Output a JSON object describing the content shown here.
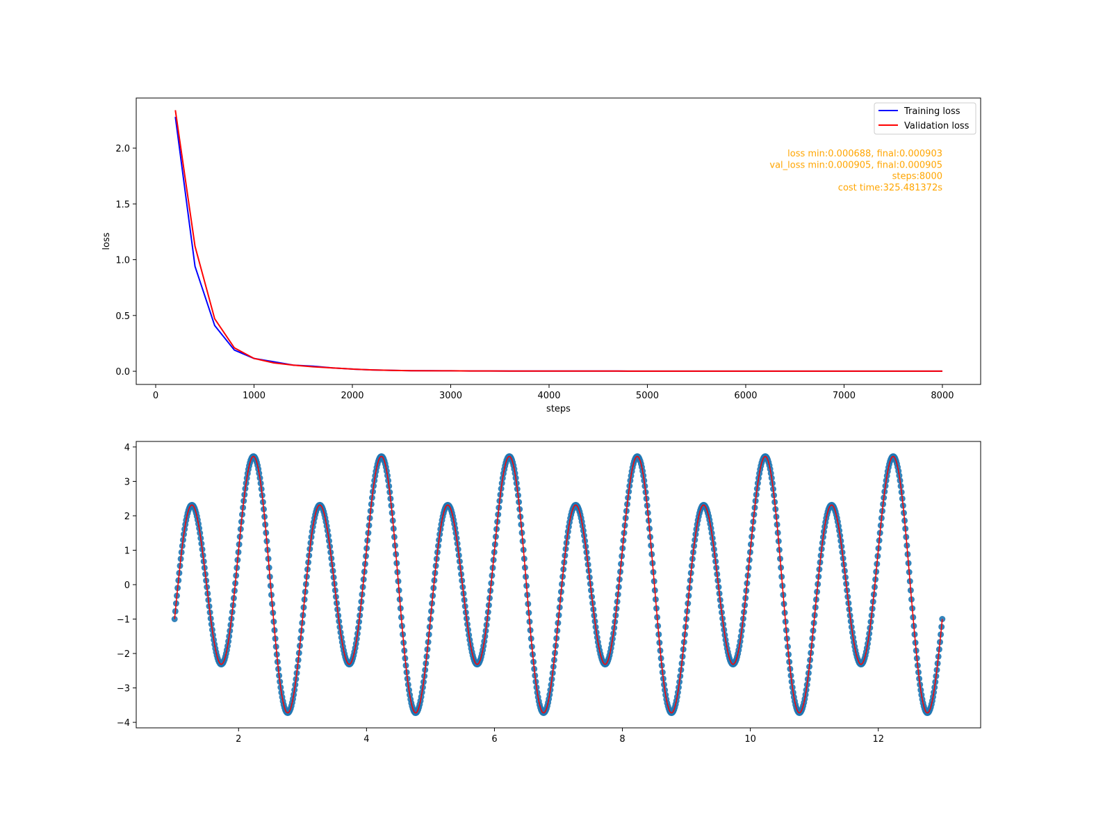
{
  "chart_data": [
    {
      "type": "line",
      "xlabel": "steps",
      "ylabel": "loss",
      "xlim": [
        -198,
        8389
      ],
      "ylim": [
        -0.118,
        2.449
      ],
      "xticks": [
        0,
        1000,
        2000,
        3000,
        4000,
        5000,
        6000,
        7000,
        8000
      ],
      "xtick_labels": [
        "0",
        "1000",
        "2000",
        "3000",
        "4000",
        "5000",
        "6000",
        "7000",
        "8000"
      ],
      "yticks": [
        0.0,
        0.5,
        1.0,
        1.5,
        2.0
      ],
      "ytick_labels": [
        "0.0",
        "0.5",
        "1.0",
        "1.5",
        "2.0"
      ],
      "grid": false,
      "legend_position": "top-right",
      "x": [
        200,
        400,
        600,
        800,
        1000,
        1200,
        1400,
        1600,
        1800,
        2000,
        2200,
        2400,
        2600,
        2800,
        3000,
        3200,
        3400,
        3600,
        3800,
        4000,
        4200,
        4400,
        4600,
        4800,
        5000,
        5200,
        5400,
        5600,
        5800,
        6000,
        6200,
        6400,
        6600,
        6800,
        7000,
        7200,
        7400,
        7600,
        7800,
        8000
      ],
      "series": [
        {
          "name": "Training loss",
          "color": "#0000ff",
          "values": [
            2.28,
            0.94,
            0.41,
            0.19,
            0.115,
            0.085,
            0.055,
            0.045,
            0.03,
            0.02,
            0.012,
            0.008,
            0.005,
            0.005,
            0.004,
            0.003,
            0.003,
            0.002,
            0.002,
            0.002,
            0.002,
            0.002,
            0.002,
            0.001,
            0.001,
            0.001,
            0.001,
            0.001,
            0.001,
            0.001,
            0.001,
            0.001,
            0.001,
            0.001,
            0.001,
            0.001,
            0.001,
            0.001,
            0.001,
            0.0009
          ]
        },
        {
          "name": "Validation loss",
          "color": "#ff0000",
          "values": [
            2.34,
            1.12,
            0.47,
            0.21,
            0.115,
            0.075,
            0.055,
            0.04,
            0.03,
            0.02,
            0.012,
            0.008,
            0.005,
            0.004,
            0.004,
            0.003,
            0.003,
            0.002,
            0.002,
            0.002,
            0.002,
            0.002,
            0.002,
            0.001,
            0.001,
            0.001,
            0.001,
            0.001,
            0.001,
            0.001,
            0.001,
            0.001,
            0.001,
            0.001,
            0.001,
            0.001,
            0.001,
            0.001,
            0.001,
            0.0009
          ]
        }
      ],
      "annotation": {
        "color": "#ffa500",
        "lines": [
          "loss min:0.000688, final:0.000903",
          "val_loss min:0.000905, final:0.000905",
          "steps:8000",
          "cost time:325.481372s"
        ]
      }
    },
    {
      "type": "scatter",
      "xlim": [
        0.4,
        13.6
      ],
      "ylim": [
        -4.16,
        4.16
      ],
      "xticks": [
        2,
        4,
        6,
        8,
        10,
        12
      ],
      "xtick_labels": [
        "2",
        "4",
        "6",
        "8",
        "10",
        "12"
      ],
      "yticks": [
        -4,
        -3,
        -2,
        -1,
        0,
        1,
        2,
        3,
        4
      ],
      "ytick_labels": [
        "−4",
        "−3",
        "−2",
        "−1",
        "0",
        "1",
        "2",
        "3",
        "4"
      ],
      "grid": false,
      "x_range": [
        1,
        13
      ],
      "y_expression": "3*sin(2*pi*x) + cos(pi*x)",
      "scatter_color": "#1f77b4",
      "line_color": "#ff0000"
    }
  ]
}
